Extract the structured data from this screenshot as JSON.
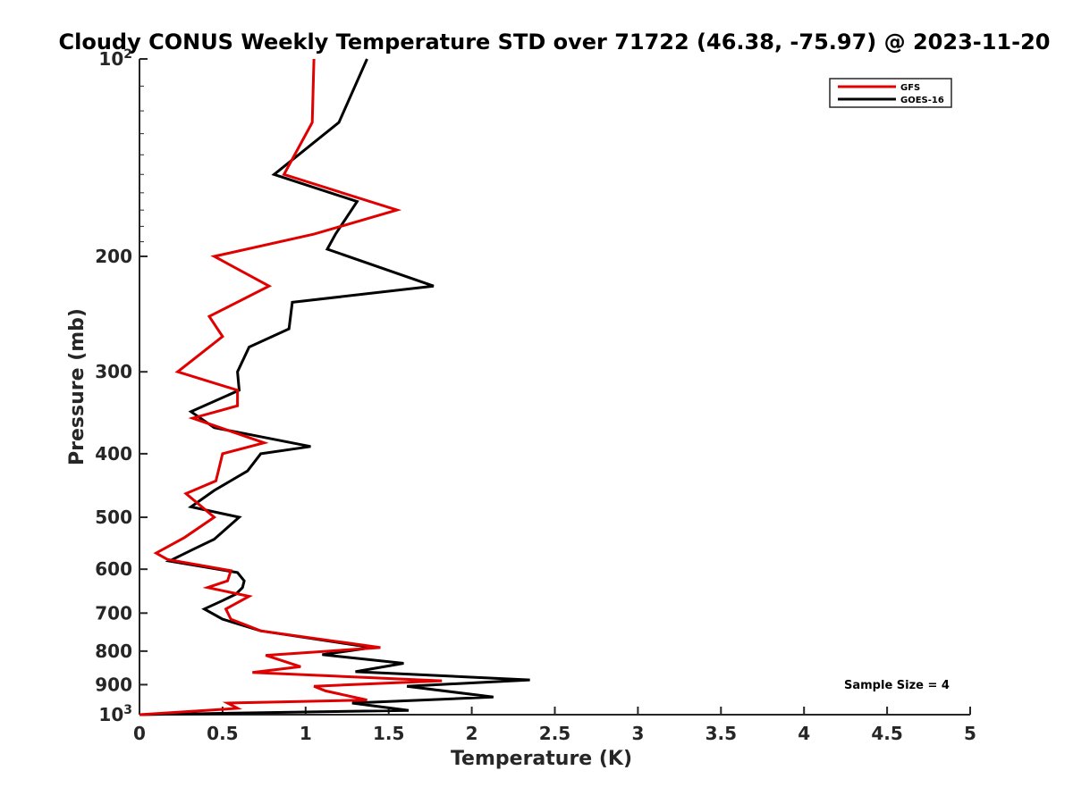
{
  "chart_data": {
    "type": "line",
    "title": "Cloudy CONUS Weekly Temperature STD over 71722 (46.38, -75.97) @ 2023-11-20",
    "xlabel": "Temperature (K)",
    "ylabel": "Pressure (mb)",
    "xlim": [
      0,
      5
    ],
    "ylim": [
      100,
      1000
    ],
    "yscale": "log",
    "y_reversed": true,
    "x_ticks": [
      0,
      0.5,
      1,
      1.5,
      2,
      2.5,
      3,
      3.5,
      4,
      4.5,
      5
    ],
    "x_tick_labels": [
      "0",
      "0.5",
      "1",
      "1.5",
      "2",
      "2.5",
      "3",
      "3.5",
      "4",
      "4.5",
      "5"
    ],
    "y_ticks": [
      {
        "value": 100,
        "label": "10",
        "sup": "2"
      },
      {
        "value": 200,
        "label": "200",
        "sup": ""
      },
      {
        "value": 300,
        "label": "300",
        "sup": ""
      },
      {
        "value": 400,
        "label": "400",
        "sup": ""
      },
      {
        "value": 500,
        "label": "500",
        "sup": ""
      },
      {
        "value": 600,
        "label": "600",
        "sup": ""
      },
      {
        "value": 700,
        "label": "700",
        "sup": ""
      },
      {
        "value": 800,
        "label": "800",
        "sup": ""
      },
      {
        "value": 900,
        "label": "900",
        "sup": ""
      },
      {
        "value": 1000,
        "label": "10",
        "sup": "3"
      }
    ],
    "grid": false,
    "legend_position": "top-right",
    "annotation": "Sample Size = 4",
    "series": [
      {
        "name": "GFS",
        "color": "#e00000",
        "points": [
          [
            1.05,
            100
          ],
          [
            1.04,
            125
          ],
          [
            0.87,
            150
          ],
          [
            1.55,
            170
          ],
          [
            1.05,
            185
          ],
          [
            0.45,
            200
          ],
          [
            0.78,
            222
          ],
          [
            0.42,
            247
          ],
          [
            0.5,
            265
          ],
          [
            0.23,
            300
          ],
          [
            0.59,
            320
          ],
          [
            0.59,
            338
          ],
          [
            0.32,
            353
          ],
          [
            0.75,
            385
          ],
          [
            0.5,
            400
          ],
          [
            0.46,
            440
          ],
          [
            0.28,
            460
          ],
          [
            0.45,
            500
          ],
          [
            0.27,
            537
          ],
          [
            0.1,
            567
          ],
          [
            0.17,
            580
          ],
          [
            0.55,
            603
          ],
          [
            0.53,
            625
          ],
          [
            0.41,
            640
          ],
          [
            0.66,
            660
          ],
          [
            0.52,
            690
          ],
          [
            0.55,
            715
          ],
          [
            0.73,
            745
          ],
          [
            1.45,
            790
          ],
          [
            0.76,
            812
          ],
          [
            0.97,
            845
          ],
          [
            0.68,
            862
          ],
          [
            1.82,
            888
          ],
          [
            1.05,
            905
          ],
          [
            1.12,
            920
          ],
          [
            1.37,
            950
          ],
          [
            0.53,
            960
          ],
          [
            0.59,
            978
          ],
          [
            0.0,
            1000
          ]
        ]
      },
      {
        "name": "GOES-16",
        "color": "#000000",
        "points": [
          [
            1.37,
            100
          ],
          [
            1.2,
            125
          ],
          [
            0.81,
            150
          ],
          [
            1.31,
            165
          ],
          [
            1.18,
            185
          ],
          [
            1.13,
            195
          ],
          [
            1.77,
            222
          ],
          [
            0.92,
            235
          ],
          [
            0.9,
            258
          ],
          [
            0.66,
            275
          ],
          [
            0.59,
            300
          ],
          [
            0.6,
            320
          ],
          [
            0.31,
            345
          ],
          [
            0.45,
            365
          ],
          [
            1.03,
            390
          ],
          [
            0.73,
            400
          ],
          [
            0.65,
            425
          ],
          [
            0.45,
            455
          ],
          [
            0.31,
            482
          ],
          [
            0.6,
            500
          ],
          [
            0.45,
            540
          ],
          [
            0.32,
            560
          ],
          [
            0.18,
            583
          ],
          [
            0.59,
            607
          ],
          [
            0.63,
            625
          ],
          [
            0.62,
            640
          ],
          [
            0.58,
            655
          ],
          [
            0.5,
            670
          ],
          [
            0.39,
            690
          ],
          [
            0.5,
            715
          ],
          [
            0.73,
            745
          ],
          [
            1.4,
            790
          ],
          [
            1.1,
            810
          ],
          [
            1.59,
            835
          ],
          [
            1.3,
            860
          ],
          [
            2.35,
            885
          ],
          [
            1.61,
            905
          ],
          [
            2.13,
            940
          ],
          [
            1.28,
            960
          ],
          [
            1.62,
            985
          ],
          [
            0.0,
            1000
          ]
        ]
      }
    ]
  }
}
